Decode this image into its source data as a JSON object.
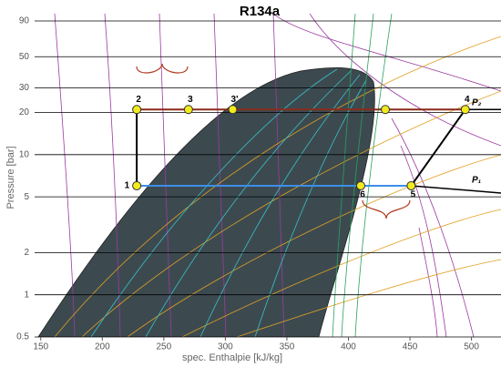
{
  "chart_data": {
    "type": "line",
    "title": "R134a",
    "x_label": "spec. Enthalpie [kJ/kg]",
    "y_label": "Pressure [bar]",
    "xlim": [
      145,
      524
    ],
    "ylim": [
      0.5,
      90
    ],
    "ylog": true,
    "grid": true,
    "xticks": [
      150,
      200,
      250,
      300,
      350,
      400,
      450,
      500
    ],
    "yticks": [
      0.5,
      1,
      2,
      5,
      10,
      20,
      30,
      50,
      90
    ],
    "series": [
      {
        "color": "#000000",
        "x": [
          228,
          228
        ],
        "values": [
          6,
          21
        ]
      },
      {
        "color": "#8b2a1a",
        "x": [
          228,
          495
        ],
        "values": [
          21,
          21
        ]
      },
      {
        "color": "#000000",
        "x": [
          495,
          451
        ],
        "values": [
          21,
          6
        ]
      },
      {
        "color": "#3d8ee8",
        "x": [
          451,
          228
        ],
        "values": [
          6,
          6
        ]
      }
    ],
    "points": {
      "color": "#f2ec1c",
      "x": [
        228,
        228,
        270,
        306,
        430,
        495,
        451,
        410
      ],
      "values": [
        6,
        21,
        21,
        21,
        21,
        21,
        6,
        6
      ],
      "labels": [
        "1",
        "2",
        "3",
        "3'",
        null,
        "4",
        "5",
        "6"
      ]
    },
    "annotations": [
      "P₂",
      "P₁"
    ]
  }
}
